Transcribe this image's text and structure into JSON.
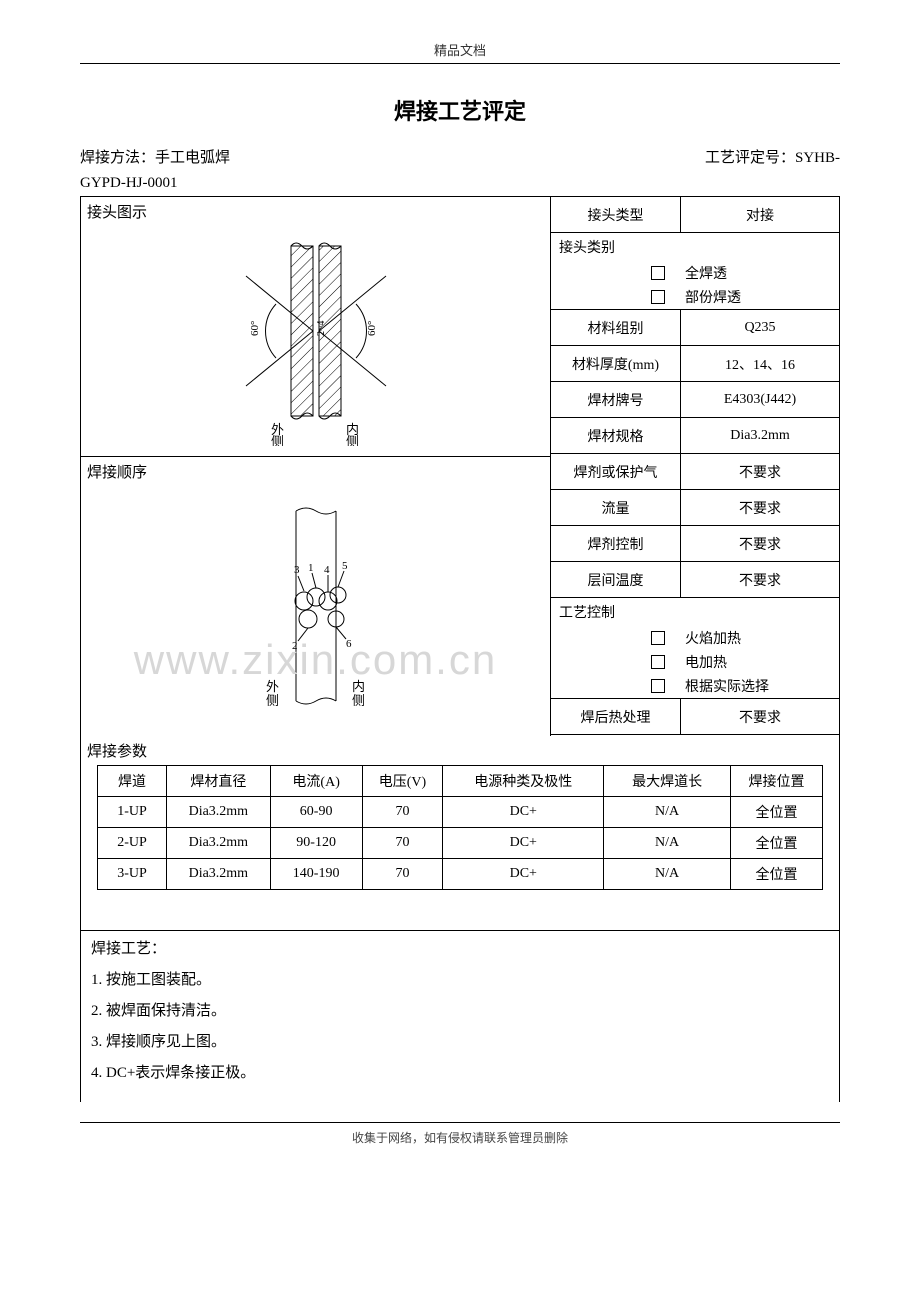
{
  "header_small": "精品文档",
  "title": "焊接工艺评定",
  "meta": {
    "method_label": "焊接方法：",
    "method_value": "手工电弧焊",
    "eval_label": "工艺评定号：",
    "eval_value": "SYHB-"
  },
  "doc_num": "GYPD-HJ-0001",
  "left": {
    "joint_diagram_label": "接头图示",
    "seq_label": "焊接顺序",
    "outer_label": "外侧",
    "inner_label": "内侧",
    "angle_left": "60°",
    "angle_right": "60°",
    "gap_label": "2~4",
    "seq_numbers": [
      "3",
      "1",
      "4",
      "5",
      "2",
      "6"
    ]
  },
  "right_rows": [
    {
      "type": "kv",
      "key": "接头类型",
      "val": "对接"
    },
    {
      "type": "block",
      "head": "接头类别",
      "items": [
        {
          "checked": false,
          "label": "全焊透"
        },
        {
          "checked": false,
          "label": "部份焊透"
        }
      ]
    },
    {
      "type": "kv",
      "key": "材料组别",
      "val": "Q235"
    },
    {
      "type": "kv",
      "key": "材料厚度(mm)",
      "val": "12、14、16"
    },
    {
      "type": "kv",
      "key": "焊材牌号",
      "val": "E4303(J442)"
    },
    {
      "type": "kv",
      "key": "焊材规格",
      "val": "Dia3.2mm"
    },
    {
      "type": "kv",
      "key": "焊剂或保护气",
      "val": "不要求"
    },
    {
      "type": "kv",
      "key": "流量",
      "val": "不要求"
    },
    {
      "type": "kv",
      "key": "焊剂控制",
      "val": "不要求"
    },
    {
      "type": "kv",
      "key": "层间温度",
      "val": "不要求"
    },
    {
      "type": "block",
      "head": "工艺控制",
      "items": [
        {
          "checked": false,
          "label": "火焰加热"
        },
        {
          "checked": false,
          "label": "电加热"
        },
        {
          "checked": false,
          "label": "根据实际选择"
        }
      ]
    },
    {
      "type": "kv",
      "key": "焊后热处理",
      "val": "不要求"
    }
  ],
  "params": {
    "section_label": "焊接参数",
    "columns": [
      "焊道",
      "焊材直径",
      "电流(A)",
      "电压(V)",
      "电源种类及极性",
      "最大焊道长",
      "焊接位置"
    ],
    "col_widths": [
      "60px",
      "90px",
      "80px",
      "70px",
      "140px",
      "110px",
      "80px"
    ],
    "rows": [
      [
        "1-UP",
        "Dia3.2mm",
        "60-90",
        "70",
        "DC+",
        "N/A",
        "全位置"
      ],
      [
        "2-UP",
        "Dia3.2mm",
        "90-120",
        "70",
        "DC+",
        "N/A",
        "全位置"
      ],
      [
        "3-UP",
        "Dia3.2mm",
        "140-190",
        "70",
        "DC+",
        "N/A",
        "全位置"
      ]
    ]
  },
  "process": {
    "title": "焊接工艺：",
    "items": [
      "1.  按施工图装配。",
      "2.  被焊面保持清洁。",
      "3.  焊接顺序见上图。",
      "4.  DC+表示焊条接正极。"
    ]
  },
  "watermark": "www.zixin.com.cn",
  "footer": "收集于网络，如有侵权请联系管理员删除",
  "colors": {
    "border": "#000000",
    "watermark": "#d7d7d7",
    "hatch": "#000000"
  }
}
